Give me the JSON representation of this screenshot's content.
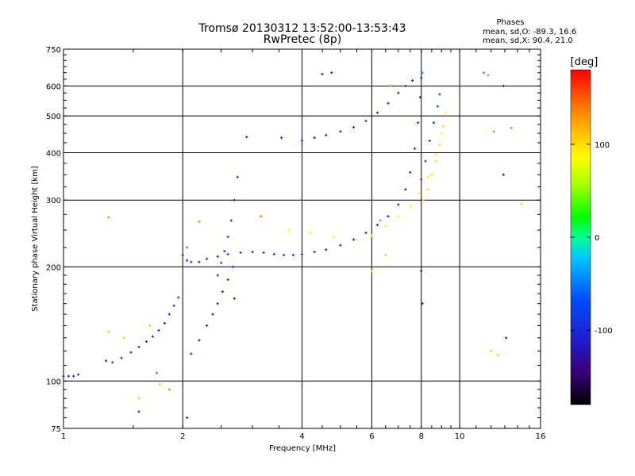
{
  "chart_data": {
    "type": "scatter",
    "title": "Tromsø 20130312 13:52:00-13:53:43",
    "subtitle": "RwPretec (8p)",
    "xlabel": "Frequency [MHz]",
    "ylabel": "Stationary phase Virtual Height [km]",
    "x_scale": "log",
    "y_scale": "log",
    "xlim": [
      1,
      16
    ],
    "ylim": [
      75,
      750
    ],
    "x_ticks": [
      1,
      2,
      4,
      6,
      8,
      10,
      16
    ],
    "x_tick_labels": [
      "1",
      "2",
      "4",
      "6",
      "8",
      "10",
      "16"
    ],
    "y_ticks": [
      75,
      100,
      200,
      300,
      400,
      500,
      600,
      750
    ],
    "y_tick_labels": [
      "75",
      "100",
      "200",
      "300",
      "400",
      "500",
      "600",
      "750"
    ],
    "grid_x": [
      2,
      4,
      6,
      8,
      10
    ],
    "grid_y": [
      100,
      200,
      300,
      400,
      500,
      600
    ],
    "grid": true,
    "stats": {
      "heading": "Phases",
      "line1": "mean, sd,O: -89.3, 16.6",
      "line2": "mean, sd,X:  90.4, 21.0"
    },
    "colorbar": {
      "label": "[deg]",
      "range": [
        -180,
        180
      ],
      "ticks": [
        100,
        0,
        -100
      ],
      "tick_labels": [
        "100",
        "0",
        "-100"
      ]
    },
    "traces": [
      {
        "phase": -110,
        "points": [
          [
            1.0,
            103
          ],
          [
            1.03,
            103
          ],
          [
            1.06,
            103
          ],
          [
            1.09,
            104
          ]
        ]
      },
      {
        "phase": -110,
        "points": [
          [
            1.28,
            113
          ],
          [
            1.33,
            112
          ],
          [
            1.4,
            115
          ],
          [
            1.48,
            119
          ],
          [
            1.55,
            123
          ],
          [
            1.62,
            127
          ],
          [
            1.68,
            131
          ],
          [
            1.74,
            136
          ],
          [
            1.8,
            142
          ],
          [
            1.85,
            150
          ],
          [
            1.9,
            158
          ],
          [
            1.95,
            166
          ]
        ]
      },
      {
        "phase": -115,
        "points": [
          [
            2.0,
            215
          ],
          [
            2.05,
            208
          ],
          [
            2.1,
            206
          ],
          [
            2.2,
            206
          ],
          [
            2.3,
            210
          ],
          [
            2.45,
            213
          ],
          [
            2.6,
            216
          ],
          [
            2.8,
            218
          ],
          [
            3.0,
            219
          ],
          [
            3.2,
            218
          ],
          [
            3.4,
            216
          ],
          [
            3.6,
            215
          ],
          [
            3.8,
            215
          ],
          [
            4.0,
            216
          ],
          [
            4.3,
            219
          ],
          [
            4.6,
            222
          ],
          [
            5.0,
            228
          ],
          [
            5.4,
            236
          ],
          [
            5.8,
            246
          ],
          [
            6.2,
            258
          ],
          [
            6.6,
            272
          ],
          [
            7.0,
            292
          ],
          [
            7.3,
            320
          ],
          [
            7.5,
            355
          ],
          [
            7.7,
            410
          ],
          [
            7.85,
            480
          ],
          [
            7.95,
            560
          ],
          [
            8.0,
            630
          ]
        ]
      },
      {
        "phase": -100,
        "points": [
          [
            2.45,
            190
          ],
          [
            2.5,
            205
          ],
          [
            2.55,
            220
          ],
          [
            2.6,
            240
          ],
          [
            2.65,
            265
          ],
          [
            2.7,
            300
          ],
          [
            2.75,
            345
          ]
        ]
      },
      {
        "phase": -115,
        "points": [
          [
            2.1,
            118
          ],
          [
            2.2,
            128
          ],
          [
            2.3,
            140
          ],
          [
            2.38,
            150
          ],
          [
            2.45,
            160
          ],
          [
            2.52,
            172
          ],
          [
            2.6,
            185
          ],
          [
            2.68,
            200
          ]
        ]
      },
      {
        "phase": -120,
        "points": [
          [
            4.0,
            430
          ],
          [
            4.3,
            438
          ],
          [
            4.6,
            445
          ],
          [
            5.0,
            455
          ],
          [
            5.4,
            467
          ],
          [
            5.8,
            485
          ],
          [
            6.2,
            510
          ],
          [
            6.6,
            540
          ],
          [
            7.0,
            575
          ],
          [
            7.3,
            600
          ],
          [
            7.6,
            620
          ]
        ]
      },
      {
        "phase": -90,
        "points": [
          [
            8.0,
            340
          ],
          [
            8.2,
            380
          ],
          [
            8.4,
            430
          ],
          [
            8.6,
            480
          ],
          [
            8.8,
            530
          ],
          [
            8.9,
            570
          ]
        ]
      },
      {
        "phase": 90,
        "points": [
          [
            3.7,
            250
          ],
          [
            4.2,
            246
          ],
          [
            4.8,
            240
          ],
          [
            5.5,
            236
          ],
          [
            6.0,
            242
          ],
          [
            6.5,
            256
          ],
          [
            7.0,
            272
          ],
          [
            7.5,
            290
          ],
          [
            7.9,
            312
          ],
          [
            8.3,
            345
          ],
          [
            8.7,
            395
          ],
          [
            9.0,
            450
          ],
          [
            9.2,
            510
          ]
        ]
      },
      {
        "phase": 60,
        "points": [
          [
            8.1,
            300
          ],
          [
            8.3,
            320
          ],
          [
            8.5,
            350
          ],
          [
            8.7,
            380
          ],
          [
            8.9,
            420
          ],
          [
            9.1,
            470
          ]
        ]
      },
      {
        "phase": 140,
        "points": [
          [
            1.85,
            95
          ],
          [
            3.15,
            272
          ],
          [
            6.3,
            265
          ],
          [
            6.7,
            600
          ],
          [
            12.2,
            455
          ],
          [
            13.5,
            465
          ],
          [
            11.8,
            640
          ],
          [
            1.3,
            270
          ],
          [
            2.2,
            263
          ]
        ]
      },
      {
        "phase": 110,
        "points": [
          [
            1.3,
            135
          ],
          [
            1.42,
            130
          ],
          [
            1.65,
            140
          ],
          [
            1.55,
            90
          ],
          [
            1.75,
            98
          ],
          [
            6.0,
            195
          ],
          [
            6.5,
            215
          ],
          [
            12.5,
            117
          ],
          [
            14.3,
            293
          ],
          [
            12.0,
            120
          ]
        ]
      },
      {
        "phase": -120,
        "points": [
          [
            2.9,
            440
          ],
          [
            3.55,
            438
          ],
          [
            4.75,
            650
          ],
          [
            4.5,
            645
          ],
          [
            12.9,
            600
          ],
          [
            12.9,
            350
          ],
          [
            13.1,
            130
          ],
          [
            8.05,
            160
          ],
          [
            8.0,
            195
          ],
          [
            2.7,
            165
          ],
          [
            1.55,
            83
          ],
          [
            2.05,
            80
          ]
        ]
      },
      {
        "phase": -40,
        "points": [
          [
            1.72,
            105
          ],
          [
            2.05,
            225
          ],
          [
            11.5,
            650
          ],
          [
            8.05,
            650
          ]
        ]
      }
    ]
  }
}
